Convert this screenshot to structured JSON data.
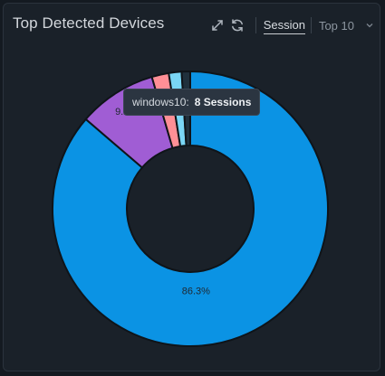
{
  "header": {
    "title": "Top Detected Devices",
    "tab_session": "Session",
    "select_value": "Top 10",
    "icons": [
      "expand-icon",
      "refresh-icon",
      "chevron-down-icon"
    ]
  },
  "tooltip": {
    "label": "windows10:",
    "value": "8 Sessions"
  },
  "chart_data": {
    "type": "pie",
    "donut": true,
    "categories": [
      "",
      "",
      "",
      "",
      ""
    ],
    "values": [
      86.3,
      9.2,
      2.0,
      1.5,
      1.0
    ],
    "data_labels": [
      "86.3%",
      "9.2%",
      "",
      "",
      ""
    ],
    "colors": [
      "#0b93e4",
      "#a05dd4",
      "#ff8f96",
      "#7ad6f5",
      "#20303c"
    ],
    "title": ""
  }
}
